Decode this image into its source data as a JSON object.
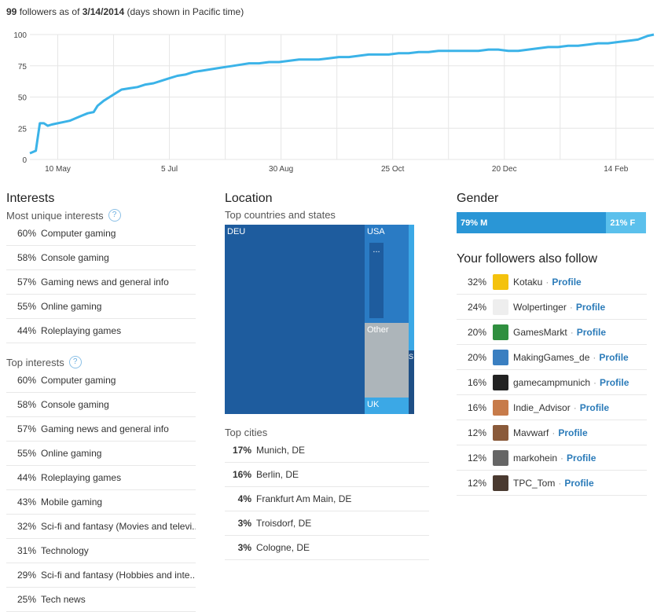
{
  "header": {
    "count": "99",
    "text1": "followers as of",
    "date": "3/14/2014",
    "text2": "(days shown in Pacific time)"
  },
  "chart_data": {
    "type": "line",
    "x": [
      0,
      3,
      5,
      7,
      9,
      11,
      14,
      17,
      20,
      23,
      26,
      29,
      32,
      34,
      37,
      40,
      43,
      46,
      50,
      54,
      58,
      62,
      66,
      70,
      74,
      78,
      82,
      86,
      90,
      94,
      98,
      102,
      106,
      110,
      115,
      120,
      125,
      130,
      135,
      140,
      145,
      150,
      155,
      160,
      165,
      170,
      175,
      180,
      185,
      190,
      195,
      200,
      205,
      210,
      215,
      220,
      225,
      230,
      235,
      240,
      245,
      250,
      255,
      260,
      265,
      270,
      275,
      280,
      285,
      290,
      295,
      300,
      305,
      310,
      313
    ],
    "values": [
      5,
      7,
      29,
      29,
      27,
      28,
      29,
      30,
      31,
      33,
      35,
      37,
      38,
      43,
      47,
      50,
      53,
      56,
      57,
      58,
      60,
      61,
      63,
      65,
      67,
      68,
      70,
      71,
      72,
      73,
      74,
      75,
      76,
      77,
      77,
      78,
      78,
      79,
      80,
      80,
      80,
      81,
      82,
      82,
      83,
      84,
      84,
      84,
      85,
      85,
      86,
      86,
      87,
      87,
      87,
      87,
      87,
      88,
      88,
      87,
      87,
      88,
      89,
      90,
      90,
      91,
      91,
      92,
      93,
      93,
      94,
      95,
      96,
      99,
      100
    ],
    "tick_labels": [
      "10 May",
      "5 Jul",
      "30 Aug",
      "25 Oct",
      "20 Dec",
      "14 Feb"
    ],
    "tick_x": [
      14,
      70,
      126,
      182,
      238,
      294
    ],
    "y_ticks": [
      0,
      25,
      50,
      75,
      100
    ],
    "ylim": [
      0,
      100
    ],
    "xlim": [
      0,
      313
    ],
    "color": "#3bb3e8",
    "grid": true
  },
  "interests": {
    "title": "Interests",
    "unique_title": "Most unique interests",
    "unique": [
      {
        "pct": "60%",
        "label": "Computer gaming"
      },
      {
        "pct": "58%",
        "label": "Console gaming"
      },
      {
        "pct": "57%",
        "label": "Gaming news and general info"
      },
      {
        "pct": "55%",
        "label": "Online gaming"
      },
      {
        "pct": "44%",
        "label": "Roleplaying games"
      }
    ],
    "top_title": "Top interests",
    "top": [
      {
        "pct": "60%",
        "label": "Computer gaming"
      },
      {
        "pct": "58%",
        "label": "Console gaming"
      },
      {
        "pct": "57%",
        "label": "Gaming news and general info"
      },
      {
        "pct": "55%",
        "label": "Online gaming"
      },
      {
        "pct": "44%",
        "label": "Roleplaying games"
      },
      {
        "pct": "43%",
        "label": "Mobile gaming"
      },
      {
        "pct": "32%",
        "label": "Sci-fi and fantasy (Movies and televi..."
      },
      {
        "pct": "31%",
        "label": "Technology"
      },
      {
        "pct": "29%",
        "label": "Sci-fi and fantasy (Hobbies and inte..."
      },
      {
        "pct": "25%",
        "label": "Tech news"
      }
    ]
  },
  "location": {
    "title": "Location",
    "countries_title": "Top countries and states",
    "treemap": {
      "deu": "DEU",
      "usa": "USA",
      "dots": "...",
      "other": "Other",
      "uk": "UK",
      "s": "S"
    },
    "cities_title": "Top cities",
    "cities": [
      {
        "pct": "17%",
        "label": "Munich, DE"
      },
      {
        "pct": "16%",
        "label": "Berlin, DE"
      },
      {
        "pct": "4%",
        "label": "Frankfurt Am Main, DE"
      },
      {
        "pct": "3%",
        "label": "Troisdorf, DE"
      },
      {
        "pct": "3%",
        "label": "Cologne, DE"
      }
    ]
  },
  "gender": {
    "title": "Gender",
    "m_label": "79% M",
    "f_label": "21% F",
    "m": 0.79,
    "f": 0.21
  },
  "follows": {
    "title": "Your followers also follow",
    "separator": "·",
    "profile_label": "Profile",
    "items": [
      {
        "pct": "32%",
        "name": "Kotaku",
        "color": "#f4c20d"
      },
      {
        "pct": "24%",
        "name": "Wolpertinger",
        "color": "#eeeeee"
      },
      {
        "pct": "20%",
        "name": "GamesMarkt",
        "color": "#2f8f3f"
      },
      {
        "pct": "20%",
        "name": "MakingGames_de",
        "color": "#3a7fc1"
      },
      {
        "pct": "16%",
        "name": "gamecampmunich",
        "color": "#222222"
      },
      {
        "pct": "16%",
        "name": "Indie_Advisor",
        "color": "#c77b4a"
      },
      {
        "pct": "12%",
        "name": "Mavwarf",
        "color": "#8a5a3a"
      },
      {
        "pct": "12%",
        "name": "markohein",
        "color": "#666666"
      },
      {
        "pct": "12%",
        "name": "TPC_Tom",
        "color": "#4a3a30"
      }
    ]
  }
}
